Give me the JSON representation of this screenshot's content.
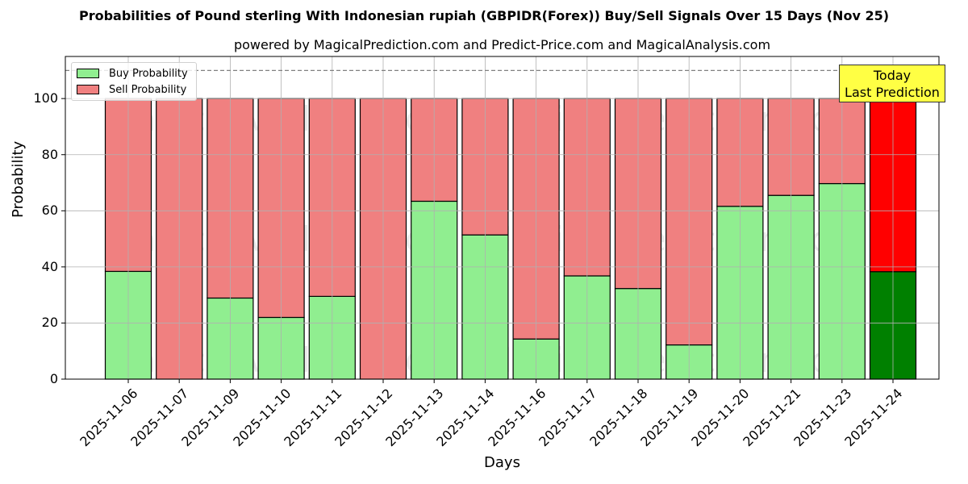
{
  "title": "Probabilities of Pound sterling With Indonesian rupiah (GBPIDR(Forex)) Buy/Sell Signals Over 15 Days (Nov 25)",
  "subtitle": "powered by MagicalPrediction.com and Predict-Price.com and MagicalAnalysis.com",
  "legend": {
    "buy": "Buy Probability",
    "sell": "Sell Probability"
  },
  "annotation": {
    "line1": "Today",
    "line2": "Last Prediction"
  },
  "watermark": [
    "MagicalAnalysis.com",
    "MagicalPrediction.com"
  ],
  "colors": {
    "buy": "#90ee90",
    "sell": "#f08080",
    "today_buy": "#008000",
    "today_sell": "#ff0000",
    "annotation_bg": "#ffff44"
  },
  "chart_data": {
    "type": "bar",
    "stacked": true,
    "title": "Probabilities of Pound sterling With Indonesian rupiah (GBPIDR(Forex)) Buy/Sell Signals Over 15 Days (Nov 25)",
    "subtitle": "powered by MagicalPrediction.com and Predict-Price.com and MagicalAnalysis.com",
    "xlabel": "Days",
    "ylabel": "Probability",
    "ylim": [
      0,
      115
    ],
    "yticks": [
      0,
      20,
      40,
      60,
      80,
      100
    ],
    "reference_line": {
      "y": 110,
      "style": "dashed"
    },
    "grid": true,
    "legend_position": "upper left",
    "categories": [
      "2025-11-06",
      "2025-11-07",
      "2025-11-09",
      "2025-11-10",
      "2025-11-11",
      "2025-11-12",
      "2025-11-13",
      "2025-11-14",
      "2025-11-16",
      "2025-11-17",
      "2025-11-18",
      "2025-11-19",
      "2025-11-20",
      "2025-11-21",
      "2025-11-23",
      "2025-11-24"
    ],
    "series": [
      {
        "name": "Buy Probability",
        "values": [
          38.4,
          0,
          28.9,
          22.0,
          29.5,
          0,
          63.4,
          51.4,
          14.3,
          36.8,
          32.3,
          12.2,
          61.6,
          65.5,
          69.7,
          38.3
        ]
      },
      {
        "name": "Sell Probability",
        "values": [
          61.6,
          100,
          71.1,
          78.0,
          70.5,
          100,
          36.6,
          48.6,
          85.7,
          63.2,
          67.7,
          87.8,
          38.4,
          34.5,
          30.3,
          61.7
        ]
      }
    ],
    "highlight_last": {
      "label": "Today Last Prediction",
      "buy_color": "#008000",
      "sell_color": "#ff0000"
    }
  }
}
